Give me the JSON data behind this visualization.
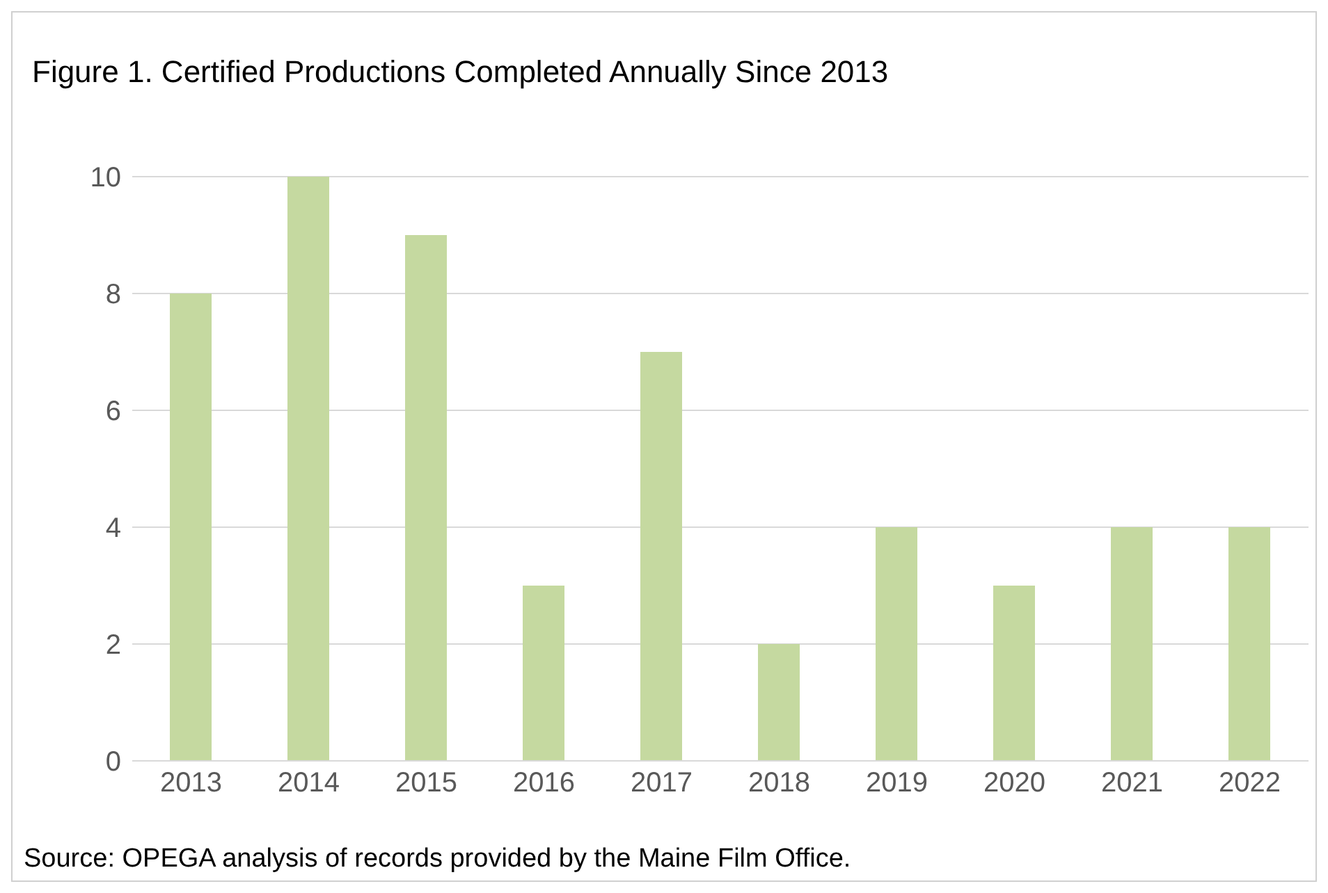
{
  "chart_data": {
    "type": "bar",
    "title": "Figure 1. Certified Productions Completed Annually Since 2013",
    "categories": [
      "2013",
      "2014",
      "2015",
      "2016",
      "2017",
      "2018",
      "2019",
      "2020",
      "2021",
      "2022"
    ],
    "values": [
      8,
      10,
      9,
      3,
      7,
      2,
      4,
      3,
      4,
      4
    ],
    "color": "#c5d9a0",
    "ylim": [
      0,
      10
    ],
    "yticks": [
      0,
      2,
      4,
      6,
      8,
      10
    ],
    "grid": "y",
    "annotations": [
      "Source: OPEGA analysis of records provided by the Maine Film Office."
    ]
  }
}
